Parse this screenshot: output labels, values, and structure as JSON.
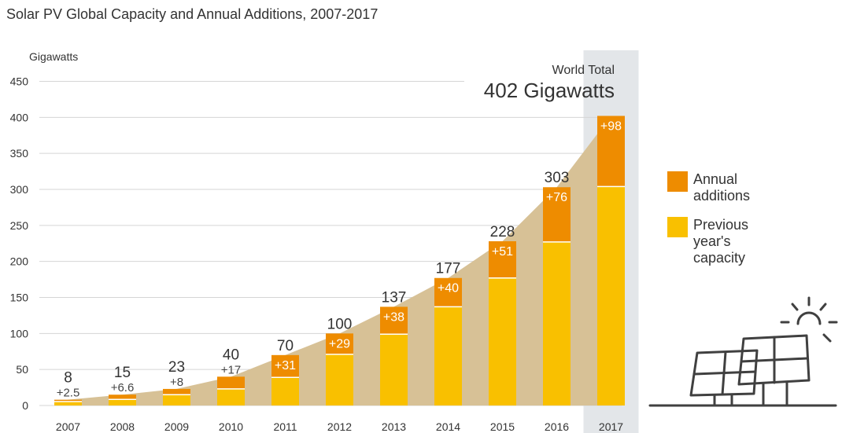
{
  "chart_data": {
    "type": "bar",
    "stacked": true,
    "title": "Solar PV Global Capacity and Annual Additions, 2007-2017",
    "ylabel": "Gigawatts",
    "ylim": [
      0,
      450
    ],
    "yticks": [
      0,
      50,
      100,
      150,
      200,
      250,
      300,
      350,
      400,
      450
    ],
    "categories": [
      "2007",
      "2008",
      "2009",
      "2010",
      "2011",
      "2012",
      "2013",
      "2014",
      "2015",
      "2016",
      "2017"
    ],
    "series": [
      {
        "name": "Previous year's capacity",
        "values": [
          5.5,
          8.4,
          15,
          23,
          39,
          71,
          99,
          137,
          177,
          227,
          304
        ]
      },
      {
        "name": "Annual additions",
        "values": [
          2.5,
          6.6,
          8,
          17,
          31,
          29,
          38,
          40,
          51,
          76,
          98
        ]
      }
    ],
    "totals": [
      "8",
      "15",
      "23",
      "40",
      "70",
      "100",
      "137",
      "177",
      "228",
      "303",
      ""
    ],
    "addition_labels": [
      "+2.5",
      "+6.6",
      "+8",
      "+17",
      "+31",
      "+29",
      "+38",
      "+40",
      "+51",
      "+76",
      "+98"
    ],
    "highlight": {
      "category": "2017",
      "caption": "World Total",
      "value_label": "402 Gigawatts"
    },
    "legend": [
      {
        "series": 1,
        "label_lines": [
          "Annual",
          "additions"
        ]
      },
      {
        "series": 0,
        "label_lines": [
          "Previous",
          "year's",
          "capacity"
        ]
      }
    ],
    "legend_position": "right",
    "grid": true
  },
  "colors": {
    "annual_additions": "#EE8C00",
    "previous_capacity": "#F9C000",
    "area_fill": "#D7C196",
    "highlight_band": "#E3E6E9",
    "grid": "#D5D5D5",
    "text": "#333333",
    "illustration": "#404040"
  },
  "decoration": {
    "illustration": "solar-panels-sun-icon"
  }
}
